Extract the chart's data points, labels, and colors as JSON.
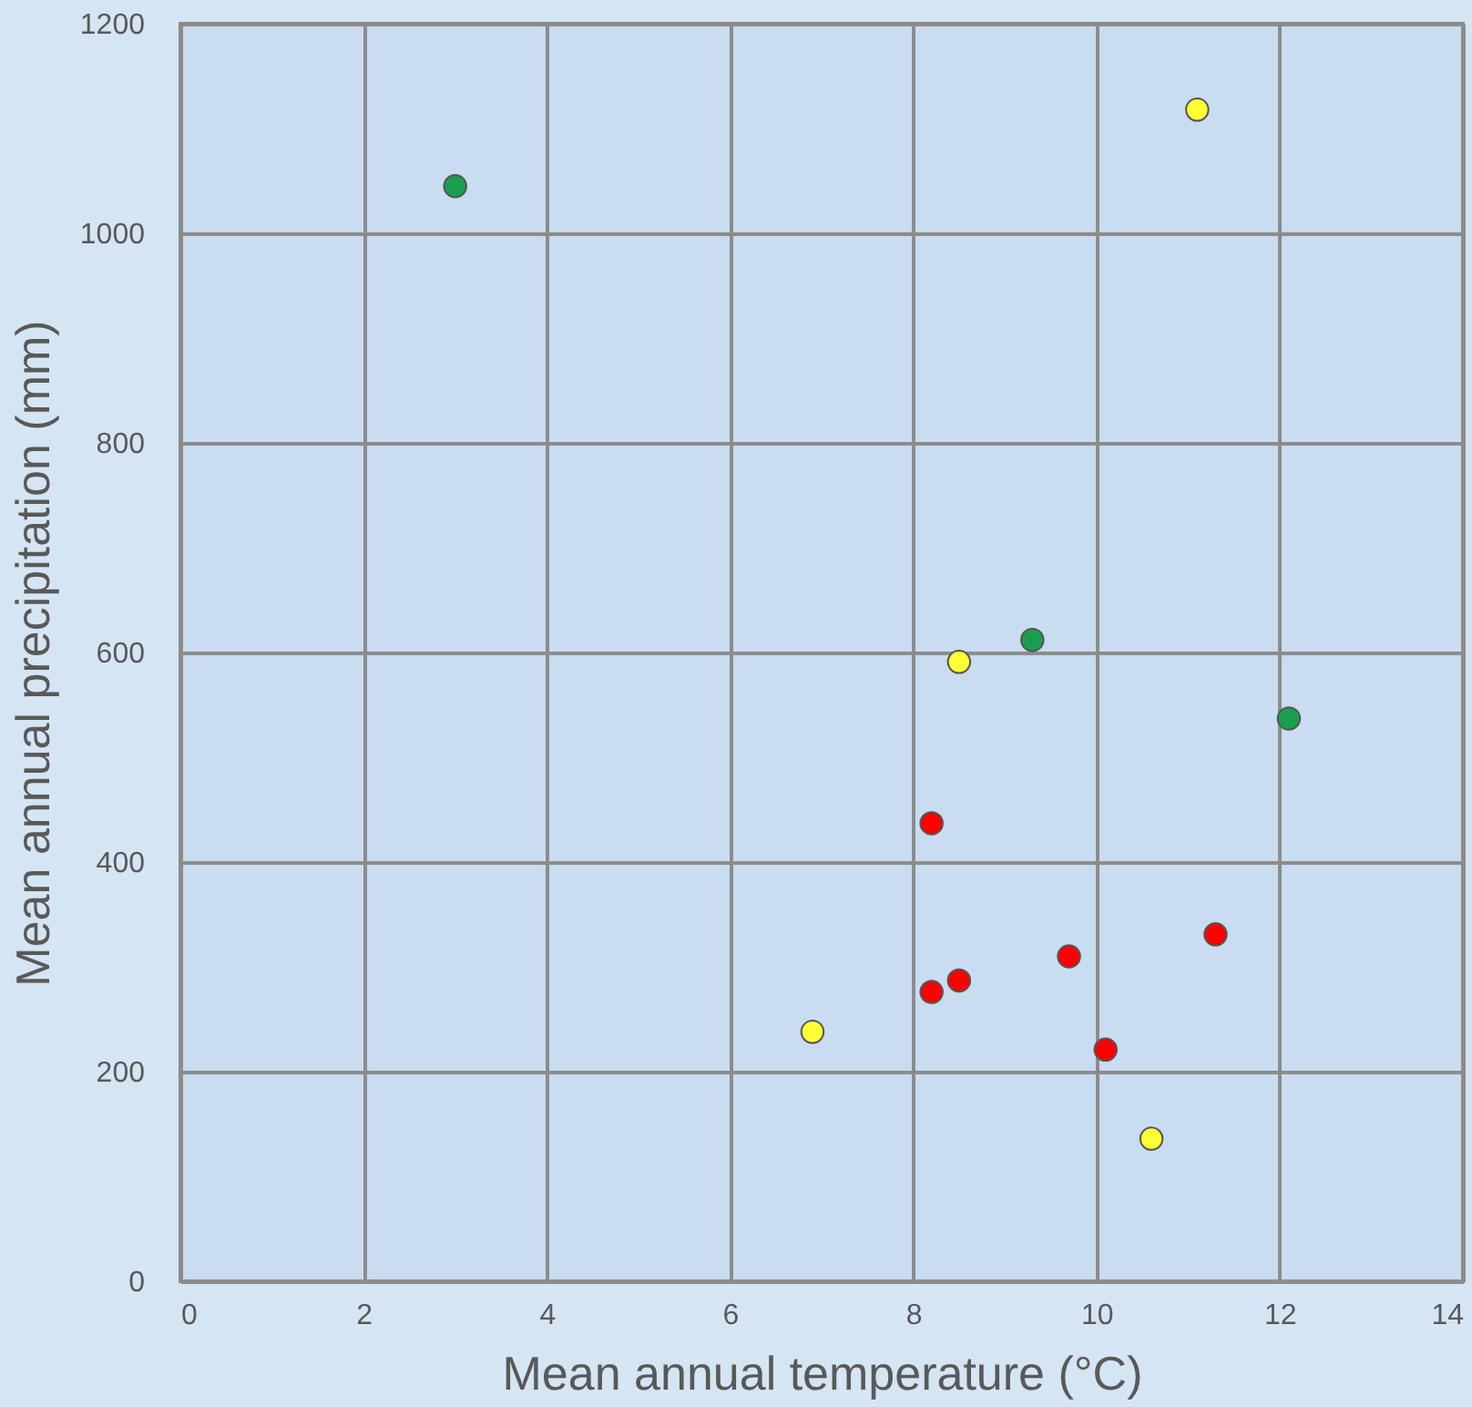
{
  "chart_data": {
    "type": "scatter",
    "xlabel": "Mean annual temperature (°C)",
    "ylabel": "Mean annual precipitation (mm)",
    "xlim": [
      0,
      14
    ],
    "xticks": [
      0,
      2,
      4,
      6,
      8,
      10,
      12,
      14
    ],
    "ylim": [
      0,
      1200
    ],
    "yticks": [
      0,
      200,
      400,
      600,
      800,
      1000,
      1200
    ],
    "grid": true,
    "marker": "circle",
    "series": [
      {
        "color": "#1a9e50",
        "x": [
          3.0,
          9.3,
          12.1
        ],
        "values": [
          1045,
          612,
          537
        ]
      },
      {
        "color": "#ffff33",
        "x": [
          11.1,
          8.5,
          6.9,
          10.6
        ],
        "values": [
          1118,
          591,
          238,
          136
        ]
      },
      {
        "color": "#ff0000",
        "x": [
          8.2,
          9.7,
          11.3,
          8.2,
          8.5,
          10.1
        ],
        "values": [
          437,
          310,
          331,
          276,
          287,
          221
        ]
      }
    ]
  }
}
